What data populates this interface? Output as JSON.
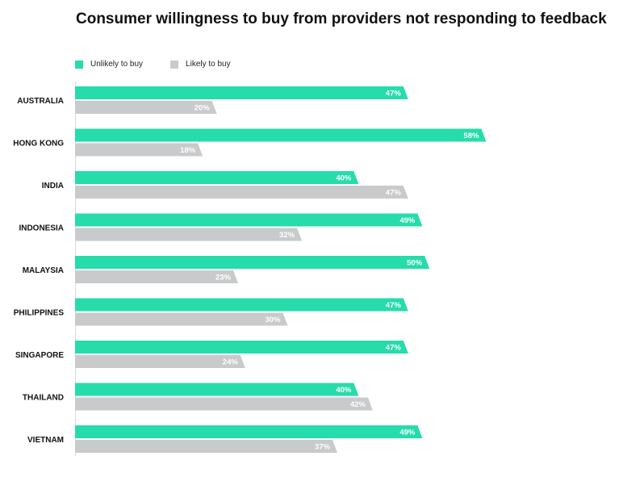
{
  "chart_data": {
    "type": "bar",
    "orientation": "horizontal",
    "title": "Consumer willingness to buy from providers not responding to feedback",
    "categories": [
      "AUSTRALIA",
      "HONG KONG",
      "INDIA",
      "INDONESIA",
      "MALAYSIA",
      "PHILIPPINES",
      "SINGAPORE",
      "THAILAND",
      "VIETNAM"
    ],
    "series": [
      {
        "name": "Unlikely to buy",
        "values": [
          47,
          58,
          40,
          49,
          50,
          47,
          47,
          40,
          49
        ],
        "labels": [
          "47%",
          "58%",
          "40%",
          "49%",
          "50%",
          "47%",
          "47%",
          "40%",
          "49%"
        ],
        "color": "#26dcaa"
      },
      {
        "name": "Likely to buy",
        "values": [
          20,
          18,
          47,
          32,
          23,
          30,
          24,
          42,
          37
        ],
        "labels": [
          "20%",
          "18%",
          "47%",
          "32%",
          "23%",
          "30%",
          "24%",
          "42%",
          "37%"
        ],
        "color": "#c8cacc"
      }
    ],
    "unit": "%",
    "xlim": [
      0,
      60
    ],
    "grid": false,
    "legend_position": "top-left"
  }
}
